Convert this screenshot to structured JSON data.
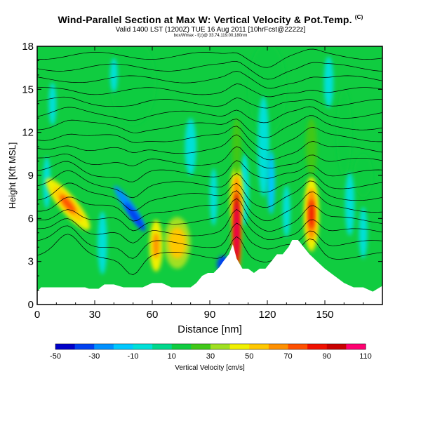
{
  "header": {
    "title": "Wind-Parallel Section at Max W: Vertical Velocity & Pot.Temp.",
    "copyright": "(C)",
    "valid_line": "Valid 1400 LST (1200Z) TUE 16 Aug 2011 [10hrFcst@2222z]",
    "location_line": "box/Wmax - f(z)@ 33.74,119.00,180nm"
  },
  "colorbar": {
    "label": "Vertical Velocity [cm/s]",
    "ticks": [
      "-50",
      "-30",
      "-10",
      "10",
      "30",
      "50",
      "70",
      "90",
      "110"
    ],
    "colors": [
      "#0000c8",
      "#0040f0",
      "#0090ff",
      "#00c8ff",
      "#00e0d8",
      "#00d88c",
      "#10cc40",
      "#40c818",
      "#a0e020",
      "#f0f000",
      "#ffc800",
      "#ff9000",
      "#ff5000",
      "#f01000",
      "#c80000",
      "#ff0070"
    ]
  },
  "chart_data": {
    "type": "heatmap",
    "title": "Wind-Parallel Section at Max W: Vertical Velocity & Pot.Temp.",
    "xlabel": "Distance [nm]",
    "ylabel": "Height [Kft MSL]",
    "xlim": [
      0,
      180
    ],
    "ylim": [
      0,
      18
    ],
    "xticks": [
      "0",
      "30",
      "60",
      "90",
      "120",
      "150"
    ],
    "yticks": [
      "0",
      "3",
      "6",
      "9",
      "12",
      "15",
      "18"
    ],
    "contour_variable": "Potential Temperature",
    "terrain_kft": [
      [
        0,
        0.9
      ],
      [
        2,
        1.2
      ],
      [
        5,
        1.2
      ],
      [
        10,
        1.2
      ],
      [
        20,
        1.2
      ],
      [
        25,
        1.2
      ],
      [
        27,
        1.1
      ],
      [
        32,
        1.1
      ],
      [
        35,
        1.4
      ],
      [
        40,
        1.4
      ],
      [
        45,
        1.2
      ],
      [
        50,
        1.2
      ],
      [
        55,
        1.2
      ],
      [
        60,
        1.5
      ],
      [
        65,
        1.5
      ],
      [
        70,
        1.2
      ],
      [
        80,
        1.2
      ],
      [
        83,
        1.5
      ],
      [
        86,
        2.0
      ],
      [
        89,
        2.2
      ],
      [
        92,
        2.2
      ],
      [
        95,
        2.6
      ],
      [
        97,
        3.0
      ],
      [
        100,
        3.5
      ],
      [
        102,
        4.2
      ],
      [
        104,
        3.2
      ],
      [
        107,
        2.5
      ],
      [
        110,
        2.5
      ],
      [
        113,
        2.2
      ],
      [
        116,
        2.5
      ],
      [
        119,
        2.5
      ],
      [
        122,
        3.0
      ],
      [
        125,
        3.5
      ],
      [
        128,
        3.5
      ],
      [
        131,
        4.0
      ],
      [
        133,
        4.5
      ],
      [
        136,
        4.5
      ],
      [
        139,
        4.0
      ],
      [
        142,
        3.5
      ],
      [
        146,
        3.0
      ],
      [
        150,
        2.5
      ],
      [
        155,
        2.0
      ],
      [
        160,
        1.5
      ],
      [
        165,
        1.2
      ],
      [
        170,
        1.2
      ],
      [
        175,
        0.9
      ],
      [
        180,
        1.3
      ]
    ],
    "updraft_cores": [
      {
        "x_nm": 16,
        "z_kft": 7,
        "w_cms": 55
      },
      {
        "x_nm": 62,
        "z_kft": 4.2,
        "w_cms": 50
      },
      {
        "x_nm": 73,
        "z_kft": 4.3,
        "w_cms": 40
      },
      {
        "x_nm": 104,
        "z_kft": 5.5,
        "w_cms": 110
      },
      {
        "x_nm": 143,
        "z_kft": 6.3,
        "w_cms": 70
      }
    ],
    "downdraft_cores": [
      {
        "x_nm": 50,
        "z_kft": 6.5,
        "w_cms": -35
      },
      {
        "x_nm": 97,
        "z_kft": 2.7,
        "w_cms": -50
      },
      {
        "x_nm": 34,
        "z_kft": 4.5,
        "w_cms": -15
      },
      {
        "x_nm": 120,
        "z_kft": 10,
        "w_cms": -15
      }
    ]
  }
}
